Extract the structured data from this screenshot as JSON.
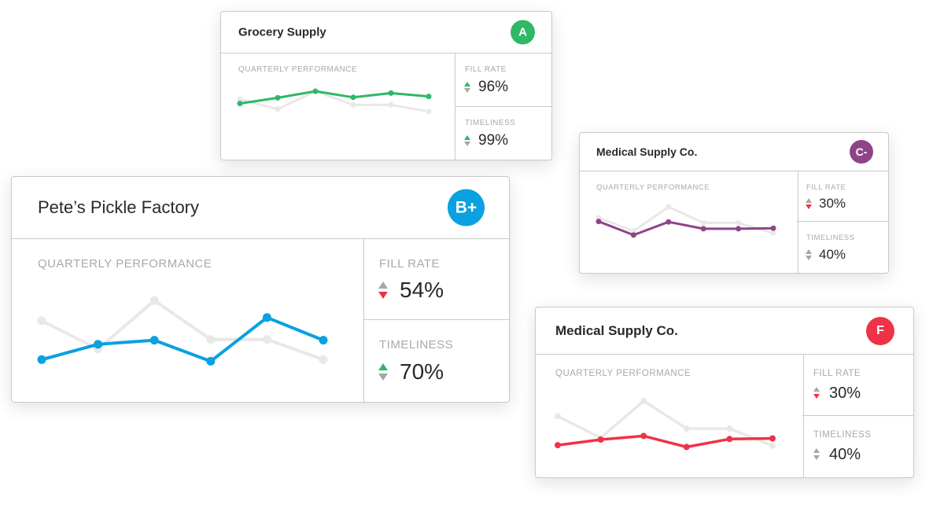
{
  "colors": {
    "border": "#c9c9c9",
    "ghost_line": "#e8e8e8",
    "arrow_neutral": "#a6a6a6",
    "arrow_up": "#2fb865",
    "arrow_down": "#ef3247"
  },
  "cards": [
    {
      "id": "grocery",
      "title": "Grocery Supply",
      "grade": "A",
      "color": "#2fb865",
      "perf_label": "QUARTERLY PERFORMANCE",
      "metrics": [
        {
          "label": "FILL RATE",
          "value": "96%",
          "trend": "up"
        },
        {
          "label": "TIMELINESS",
          "value": "99%",
          "trend": "up"
        }
      ],
      "chart_data": {
        "type": "line",
        "x": [
          1,
          2,
          3,
          4,
          5,
          6
        ],
        "ylim": [
          0,
          100
        ],
        "series": [
          {
            "role": "previous",
            "values": [
              78,
              57,
              95,
              66,
              66,
              52
            ]
          },
          {
            "role": "current",
            "values": [
              69,
              81,
              95,
              82,
              91,
              84
            ]
          }
        ]
      }
    },
    {
      "id": "medical-c",
      "title": "Medical Supply Co.",
      "grade": "C-",
      "color": "#8f4488",
      "perf_label": "QUARTERLY PERFORMANCE",
      "metrics": [
        {
          "label": "FILL RATE",
          "value": "30%",
          "trend": "down"
        },
        {
          "label": "TIMELINESS",
          "value": "40%",
          "trend": "neutral"
        }
      ],
      "chart_data": {
        "type": "line",
        "x": [
          1,
          2,
          3,
          4,
          5,
          6
        ],
        "ylim": [
          0,
          100
        ],
        "series": [
          {
            "role": "previous",
            "values": [
              70,
              42,
              92,
              59,
              59,
              38
            ]
          },
          {
            "role": "current",
            "values": [
              62,
              34,
              61,
              47,
              47,
              48
            ]
          }
        ]
      }
    },
    {
      "id": "petes",
      "title": "Pete’s Pickle Factory",
      "grade": "B+",
      "color": "#0aa1e0",
      "perf_label": "QUARTERLY PERFORMANCE",
      "metrics": [
        {
          "label": "FILL RATE",
          "value": "54%",
          "trend": "down"
        },
        {
          "label": "TIMELINESS",
          "value": "70%",
          "trend": "up"
        }
      ],
      "chart_data": {
        "type": "line",
        "x": [
          1,
          2,
          3,
          4,
          5,
          6
        ],
        "ylim": [
          0,
          100
        ],
        "series": [
          {
            "role": "previous",
            "values": [
              70,
              35,
              95,
              47,
              47,
              22
            ]
          },
          {
            "role": "current",
            "values": [
              22,
              41,
              46,
              20,
              74,
              46
            ]
          }
        ]
      }
    },
    {
      "id": "medical-f",
      "title": "Medical Supply Co.",
      "grade": "F",
      "color": "#ef3247",
      "perf_label": "QUARTERLY PERFORMANCE",
      "metrics": [
        {
          "label": "FILL RATE",
          "value": "30%",
          "trend": "down"
        },
        {
          "label": "TIMELINESS",
          "value": "40%",
          "trend": "neutral"
        }
      ],
      "chart_data": {
        "type": "line",
        "x": [
          1,
          2,
          3,
          4,
          5,
          6
        ],
        "ylim": [
          0,
          100
        ],
        "series": [
          {
            "role": "previous",
            "values": [
              70,
              35,
              95,
              50,
              50,
              22
            ]
          },
          {
            "role": "current",
            "values": [
              23,
              32,
              38,
              20,
              33,
              34
            ]
          }
        ]
      }
    }
  ]
}
